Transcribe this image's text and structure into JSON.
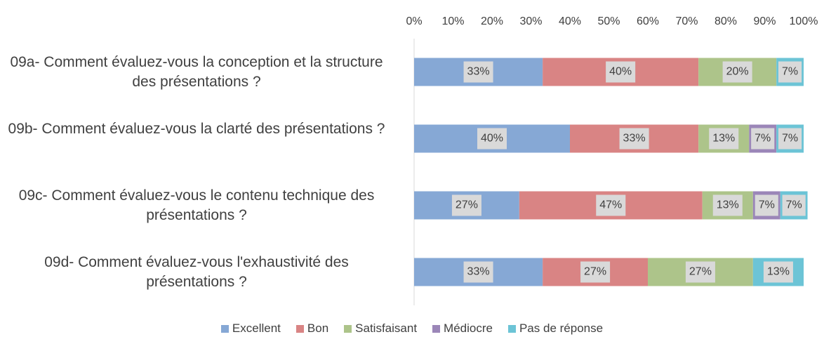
{
  "chart_data": {
    "type": "stacked-bar-horizontal",
    "categories": [
      "09a- Comment évaluez-vous la conception et la structure des présentations ?",
      "09b- Comment évaluez-vous la clarté des présentations ?",
      "09c- Comment évaluez-vous le contenu technique des présentations ?",
      "09d- Comment évaluez-vous l'exhaustivité des présentations ?"
    ],
    "series": [
      {
        "name": "Excellent",
        "color": "#86a8d5",
        "values": [
          33,
          40,
          27,
          33
        ],
        "value_labels": [
          "33%",
          "40%",
          "27%",
          "33%"
        ]
      },
      {
        "name": "Bon",
        "color": "#d98484",
        "values": [
          40,
          33,
          47,
          27
        ],
        "value_labels": [
          "40%",
          "33%",
          "47%",
          "27%"
        ]
      },
      {
        "name": "Satisfaisant",
        "color": "#adc48a",
        "values": [
          20,
          13,
          13,
          27
        ],
        "value_labels": [
          "20%",
          "13%",
          "13%",
          "27%"
        ]
      },
      {
        "name": "Médiocre",
        "color": "#9b86b8",
        "values": [
          null,
          7,
          7,
          null
        ],
        "value_labels": [
          null,
          "7%",
          "7%",
          null
        ]
      },
      {
        "name": "Pas de réponse",
        "color": "#6cc4d6",
        "values": [
          7,
          7,
          7,
          13
        ],
        "value_labels": [
          "7%",
          "7%",
          "7%",
          "13%"
        ]
      }
    ],
    "xlim": [
      0,
      100
    ],
    "xticks": [
      {
        "value": 0,
        "label": "0%"
      },
      {
        "value": 10,
        "label": "10%"
      },
      {
        "value": 20,
        "label": "20%"
      },
      {
        "value": 30,
        "label": "30%"
      },
      {
        "value": 40,
        "label": "40%"
      },
      {
        "value": 50,
        "label": "50%"
      },
      {
        "value": 60,
        "label": "60%"
      },
      {
        "value": 70,
        "label": "70%"
      },
      {
        "value": 80,
        "label": "80%"
      },
      {
        "value": 90,
        "label": "90%"
      },
      {
        "value": 100,
        "label": "100%"
      }
    ],
    "legend": "bottom"
  }
}
